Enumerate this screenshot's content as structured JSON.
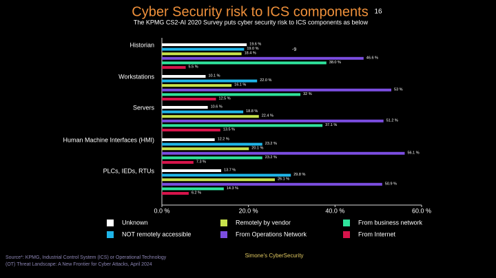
{
  "chart_data": {
    "type": "bar",
    "orientation": "horizontal",
    "title": "Cyber Security risk to ICS components",
    "page_number": "16",
    "subtitle": "The KPMG CS2-AI 2020 Survey puts cyber security risk to ICS components as below",
    "annotation": "-9",
    "categories": [
      "Historian",
      "Workstations",
      "Servers",
      "Human Machine Interfaces (HMI)",
      "PLCs, IEDs, RTUs"
    ],
    "series": [
      {
        "name": "Unknown",
        "color": "#ffffff",
        "values": [
          19.6,
          10.1,
          10.6,
          12.2,
          13.7
        ],
        "value_labels": [
          "19.6 %",
          "10.1 %",
          "10.6 %",
          "12.2 %",
          "13.7 %"
        ]
      },
      {
        "name": "NOT remotely accessible",
        "color": "#1fb5e8",
        "values": [
          19.0,
          22.0,
          18.8,
          23.2,
          29.8
        ],
        "value_labels": [
          "19.0 %",
          "22.0 %",
          "18.8 %",
          "23.2 %",
          "29.8 %"
        ]
      },
      {
        "name": "Remotely by vendor",
        "color": "#c8e24c",
        "values": [
          18.4,
          16.1,
          22.4,
          20.1,
          26.1
        ],
        "value_labels": [
          "18.4 %",
          "16.1 %",
          "22.4 %",
          "20.1 %",
          "26.1 %"
        ]
      },
      {
        "name": "From Operations Network",
        "color": "#7b4de0",
        "values": [
          46.6,
          53,
          51.2,
          56.1,
          50.9
        ],
        "value_labels": [
          "46.6 %",
          "53 %",
          "51.2 %",
          "56.1 %",
          "50.9 %"
        ]
      },
      {
        "name": "From business network",
        "color": "#2fe39c",
        "values": [
          38.0,
          32,
          37.1,
          23.2,
          14.3
        ],
        "value_labels": [
          "38.0 %",
          "32 %",
          "37.1 %",
          "23.2 %",
          "14.3 %"
        ]
      },
      {
        "name": "From Internet",
        "color": "#d6144b",
        "values": [
          5.5,
          12.5,
          13.5,
          7.3,
          6.2
        ],
        "value_labels": [
          "5.5 %",
          "12.5 %",
          "13.5 %",
          "7.3 %",
          "6.2 %"
        ]
      }
    ],
    "xlim": [
      0,
      60
    ],
    "xticks": [
      {
        "value": 0,
        "label": "0.0 %"
      },
      {
        "value": 20,
        "label": "20.0 %"
      },
      {
        "value": 40,
        "label": "40.0 %"
      },
      {
        "value": 60,
        "label": "60.0 %"
      }
    ],
    "source": [
      "Source*: KPMG, Industrial Control System (ICS) or Operational Technology",
      "(OT) Threat Landscape: A New Frontier for Cyber Attacks, April 2024"
    ],
    "credit": "Simone's CyberSecurity"
  }
}
